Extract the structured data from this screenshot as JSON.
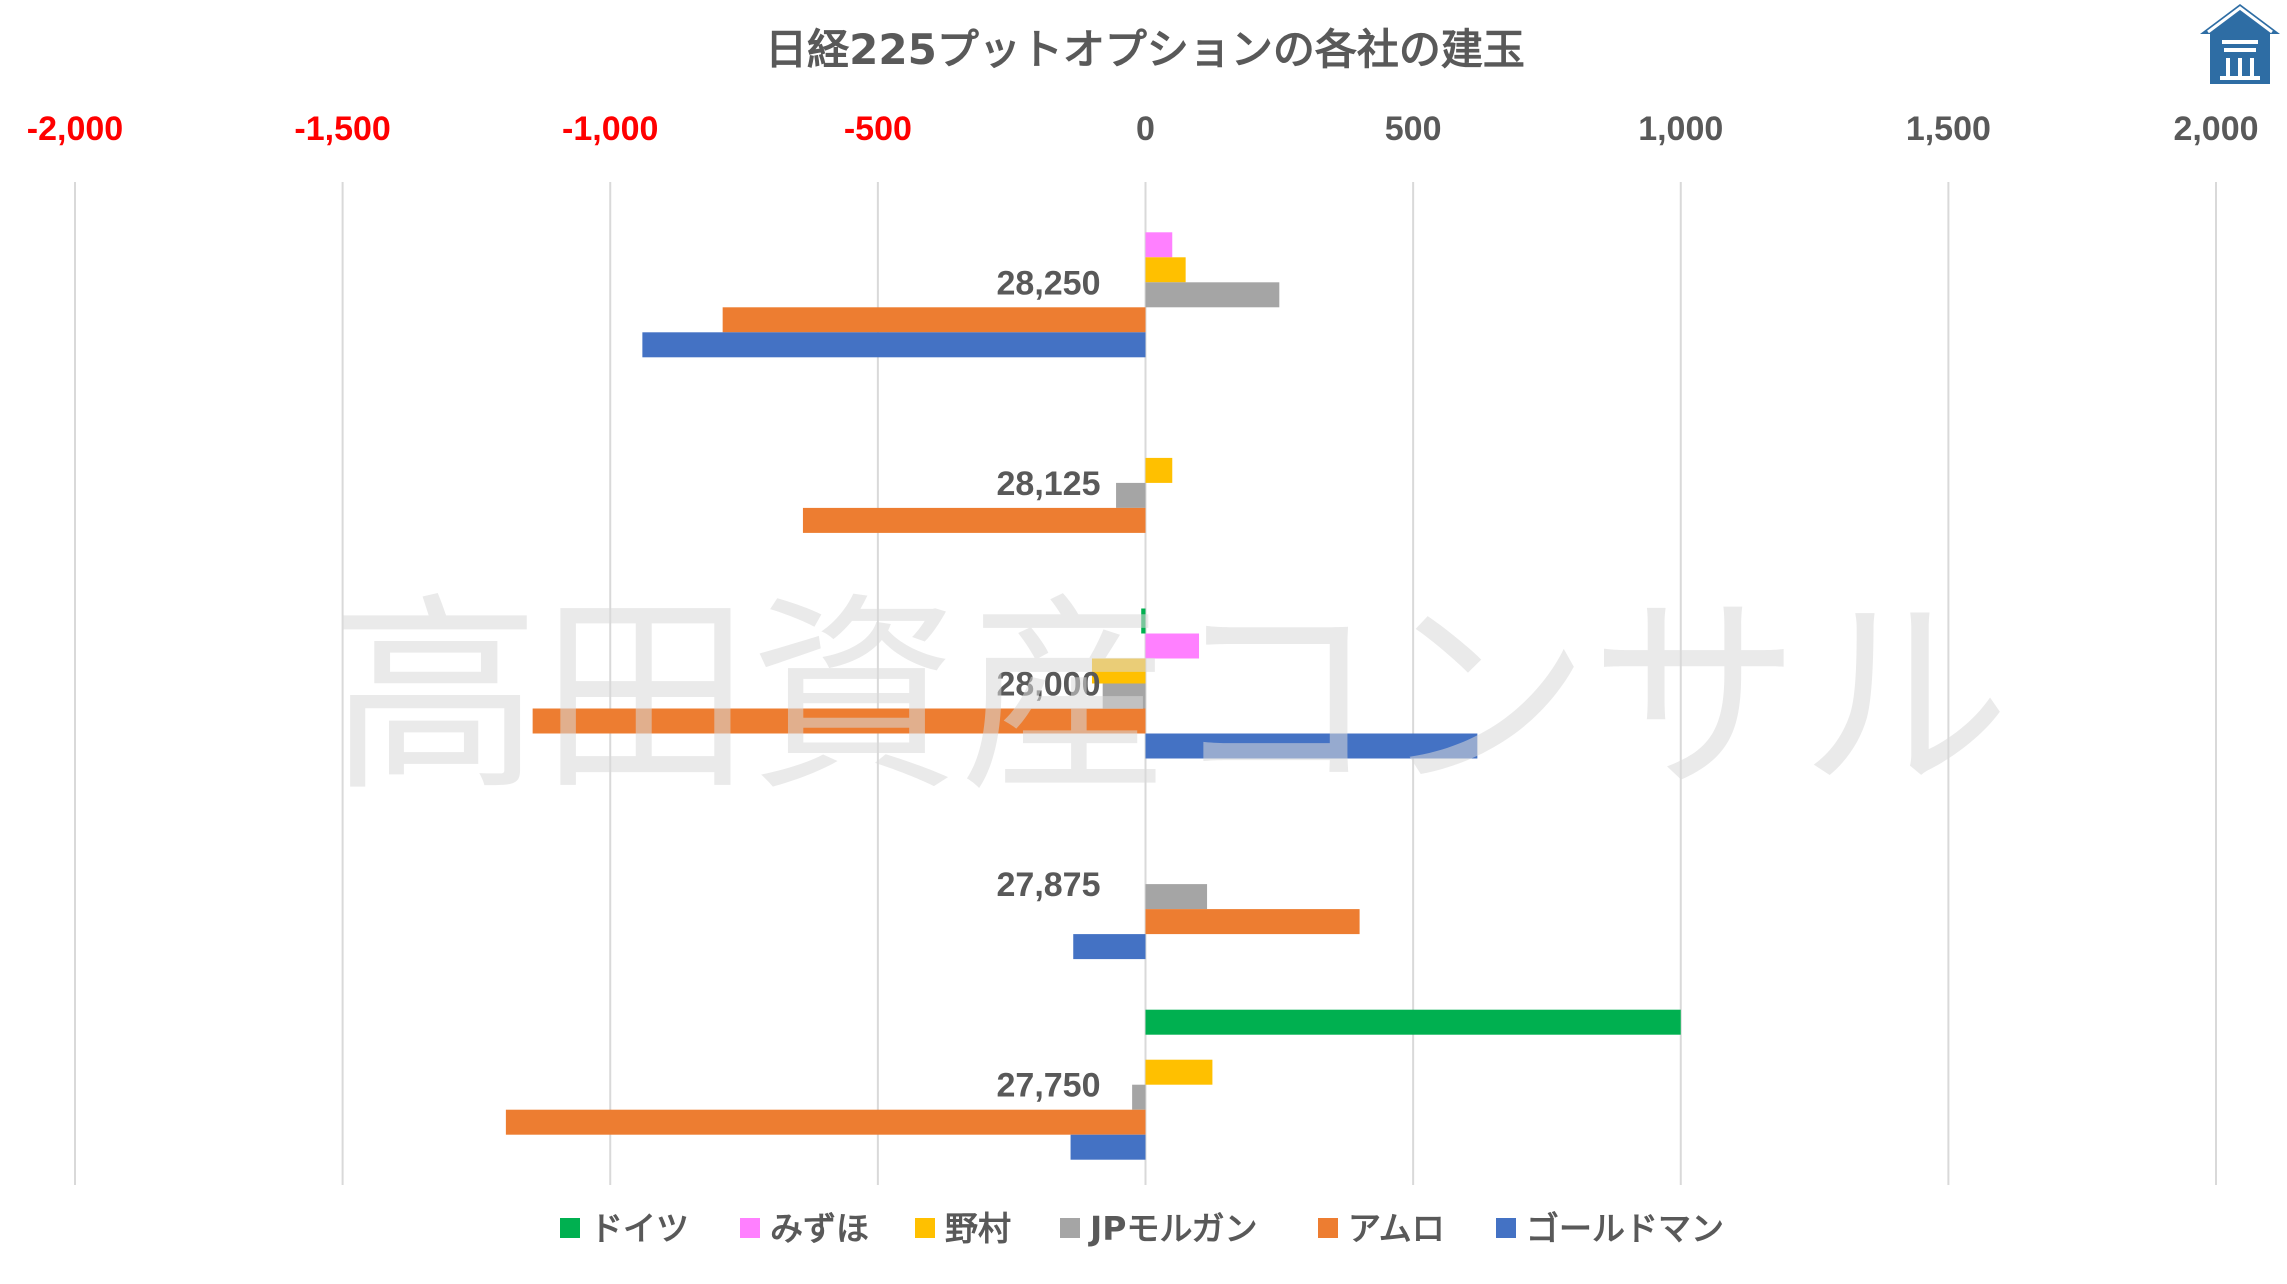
{
  "watermark": "高田資産コンサル",
  "logo": {
    "name": "takata-logo",
    "color": "#2e6da4"
  },
  "chart_data": {
    "type": "bar",
    "orientation": "horizontal",
    "title": "日経225プットオプションの各社の建玉",
    "xlim": [
      -2000,
      2000
    ],
    "x_ticks": [
      -2000,
      -1500,
      -1000,
      -500,
      0,
      500,
      1000,
      1500,
      2000
    ],
    "x_tick_labels": [
      "-2,000",
      "-1,500",
      "-1,000",
      "-500",
      "0",
      "500",
      "1,000",
      "1,500",
      "2,000"
    ],
    "negative_tick_color": "#ff0000",
    "positive_tick_color": "#595959",
    "grid": true,
    "legend_position": "bottom",
    "categories": [
      "28,250",
      "28,125",
      "28,000",
      "27,875",
      "27,750"
    ],
    "series": [
      {
        "name": "ドイツ",
        "color": "#00b050",
        "values": [
          0,
          0,
          -8,
          0,
          1000
        ]
      },
      {
        "name": "みずほ",
        "color": "#ff80ff",
        "values": [
          50,
          0,
          100,
          0,
          0
        ]
      },
      {
        "name": "野村",
        "color": "#ffc000",
        "values": [
          75,
          50,
          -100,
          0,
          125
        ]
      },
      {
        "name": "JPモルガン",
        "color": "#a5a5a5",
        "values": [
          250,
          -55,
          -80,
          115,
          -25
        ]
      },
      {
        "name": "アムロ",
        "color": "#ed7d31",
        "values": [
          -790,
          -640,
          -1145,
          400,
          -1195
        ]
      },
      {
        "name": "ゴールドマン",
        "color": "#4472c4",
        "values": [
          -940,
          0,
          620,
          -135,
          -140
        ]
      }
    ]
  }
}
